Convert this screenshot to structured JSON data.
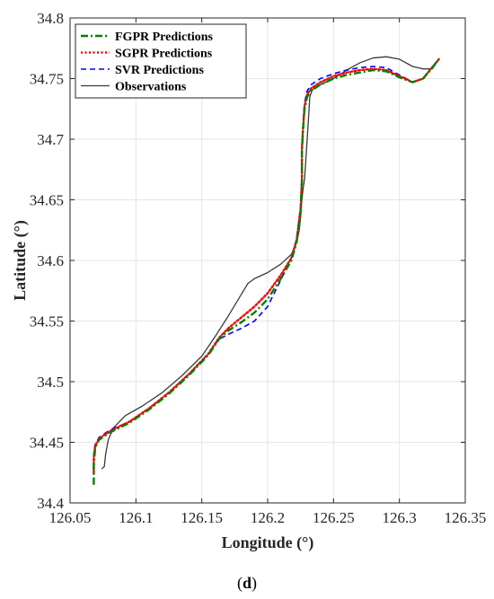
{
  "caption": "(d)",
  "chart_data": {
    "type": "line",
    "xlabel": "Longitude (°)",
    "ylabel": "Latitude (°)",
    "xlim": [
      126.05,
      126.35
    ],
    "ylim": [
      34.4,
      34.8
    ],
    "xticks": [
      126.05,
      126.1,
      126.15,
      126.2,
      126.25,
      126.3,
      126.35
    ],
    "xtick_labels": [
      "126.05",
      "126.1",
      "126.15",
      "126.2",
      "126.25",
      "126.3",
      "126.35"
    ],
    "yticks": [
      34.4,
      34.45,
      34.5,
      34.55,
      34.6,
      34.65,
      34.7,
      34.75,
      34.8
    ],
    "ytick_labels": [
      "34.4",
      "34.45",
      "34.5",
      "34.55",
      "34.6",
      "34.65",
      "34.7",
      "34.75",
      "34.8"
    ],
    "grid": true,
    "legend_position": "top-left",
    "series": [
      {
        "name": "FGPR Predictions",
        "color": "#008000",
        "dash": "dash-dot",
        "x": [
          126.068,
          126.068,
          126.069,
          126.072,
          126.08,
          126.095,
          126.11,
          126.125,
          126.14,
          126.155,
          126.163,
          126.17,
          126.18,
          126.19,
          126.2,
          126.21,
          126.218,
          126.222,
          126.225,
          126.226,
          126.226,
          126.227,
          126.228,
          126.23,
          126.233,
          126.24,
          126.25,
          126.26,
          126.27,
          126.28,
          126.29,
          126.3,
          126.31,
          126.318,
          126.324,
          126.33
        ],
        "y": [
          34.415,
          34.43,
          34.445,
          34.452,
          34.458,
          34.466,
          34.477,
          34.49,
          34.505,
          34.522,
          34.535,
          34.542,
          34.549,
          34.557,
          34.568,
          34.585,
          34.6,
          34.615,
          34.64,
          34.665,
          34.69,
          34.71,
          34.725,
          34.735,
          34.74,
          34.745,
          34.75,
          34.753,
          34.755,
          34.757,
          34.756,
          34.751,
          34.747,
          34.75,
          34.758,
          34.766
        ]
      },
      {
        "name": "SGPR Predictions",
        "color": "#ff0000",
        "dash": "dotted",
        "x": [
          126.068,
          126.068,
          126.069,
          126.072,
          126.08,
          126.095,
          126.11,
          126.125,
          126.14,
          126.155,
          126.163,
          126.17,
          126.18,
          126.19,
          126.2,
          126.21,
          126.218,
          126.222,
          126.225,
          126.226,
          126.226,
          126.227,
          126.228,
          126.23,
          126.233,
          126.24,
          126.25,
          126.26,
          126.27,
          126.28,
          126.29,
          126.3,
          126.31,
          126.318,
          126.324,
          126.33
        ],
        "y": [
          34.425,
          34.437,
          34.447,
          34.453,
          34.459,
          34.467,
          34.478,
          34.491,
          34.506,
          34.523,
          34.536,
          34.544,
          34.553,
          34.562,
          34.573,
          34.588,
          34.602,
          34.617,
          34.642,
          34.667,
          34.692,
          34.712,
          34.727,
          34.737,
          34.742,
          34.747,
          34.752,
          34.755,
          34.757,
          34.758,
          34.757,
          34.752,
          34.747,
          34.75,
          34.758,
          34.766
        ]
      },
      {
        "name": "SVR Predictions",
        "color": "#0000ff",
        "dash": "dashed",
        "x": [
          126.068,
          126.068,
          126.069,
          126.072,
          126.08,
          126.095,
          126.11,
          126.125,
          126.14,
          126.155,
          126.163,
          126.17,
          126.18,
          126.19,
          126.2,
          126.21,
          126.218,
          126.222,
          126.225,
          126.226,
          126.226,
          126.227,
          126.228,
          126.23,
          126.233,
          126.24,
          126.25,
          126.26,
          126.27,
          126.28,
          126.29,
          126.3,
          126.31,
          126.318,
          126.324,
          126.33
        ],
        "y": [
          34.43,
          34.44,
          34.448,
          34.454,
          34.46,
          34.467,
          34.478,
          34.491,
          34.506,
          34.523,
          34.535,
          34.539,
          34.544,
          34.55,
          34.562,
          34.584,
          34.602,
          34.618,
          34.645,
          34.67,
          34.695,
          34.715,
          34.73,
          34.74,
          34.745,
          34.75,
          34.754,
          34.757,
          34.759,
          34.76,
          34.759,
          34.753,
          34.747,
          34.75,
          34.758,
          34.766
        ]
      },
      {
        "name": "Observations",
        "color": "#3a3a3a",
        "dash": "solid",
        "x": [
          126.074,
          126.076,
          126.077,
          126.079,
          126.083,
          126.092,
          126.105,
          126.12,
          126.135,
          126.15,
          126.16,
          126.17,
          126.18,
          126.185,
          126.19,
          126.2,
          126.21,
          126.218,
          126.222,
          126.224,
          126.225,
          126.226,
          126.227,
          126.228,
          126.229,
          126.23,
          126.231,
          126.232,
          126.234,
          126.24,
          126.25,
          126.26,
          126.27,
          126.28,
          126.29,
          126.3,
          126.31,
          126.318,
          126.325,
          126.33
        ],
        "y": [
          34.428,
          34.43,
          34.44,
          34.452,
          34.462,
          34.472,
          34.48,
          34.491,
          34.505,
          34.521,
          34.537,
          34.554,
          34.572,
          34.581,
          34.585,
          34.59,
          34.597,
          34.605,
          34.615,
          34.625,
          34.636,
          34.65,
          34.66,
          34.667,
          34.683,
          34.7,
          34.717,
          34.735,
          34.741,
          34.745,
          34.75,
          34.757,
          34.763,
          34.767,
          34.768,
          34.766,
          34.76,
          34.758,
          34.758,
          34.766
        ]
      }
    ]
  }
}
